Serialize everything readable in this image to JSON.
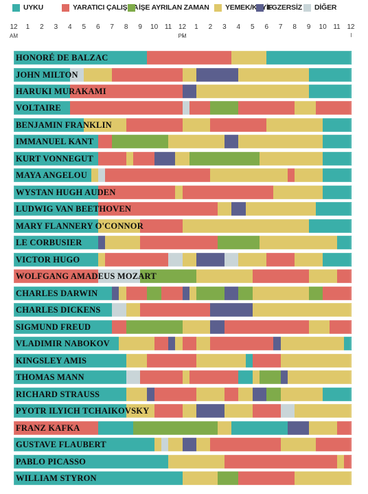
{
  "legend": [
    {
      "key": "sleep",
      "label": "UYKU",
      "color": "#3aafa9"
    },
    {
      "key": "creative",
      "label": "YARATICI ÇALIŞMA",
      "color": "#e06b63"
    },
    {
      "key": "job",
      "label": "İŞE AYRILAN ZAMAN",
      "color": "#7fab4a"
    },
    {
      "key": "food",
      "label": "YEMEK/KEYİF",
      "color": "#dfc86a"
    },
    {
      "key": "exercise",
      "label": "EGZERSİZ",
      "color": "#5b5f8e"
    },
    {
      "key": "other",
      "label": "DİĞER",
      "color": "#c9d5d8"
    }
  ],
  "axis": {
    "ticks": [
      "12",
      "1",
      "2",
      "3",
      "4",
      "5",
      "6",
      "7",
      "8",
      "9",
      "10",
      "11",
      "12",
      "1",
      "2",
      "3",
      "4",
      "5",
      "6",
      "7",
      "8",
      "9",
      "10",
      "11",
      "12"
    ],
    "am_label": "AM",
    "pm_label": "PM"
  },
  "chart_data": {
    "type": "bar",
    "orientation": "horizontal-timeline",
    "x_unit": "hour of day (0 = 12 AM, 24 = 12 AM next day)",
    "xlim": [
      0,
      24
    ],
    "category_key": {
      "S": "UYKU",
      "C": "YARATICI ÇALIŞMA",
      "J": "İŞE AYRILAN ZAMAN",
      "F": "YEMEK/KEYİF",
      "E": "EGZERSİZ",
      "O": "DİĞER"
    },
    "rows": [
      {
        "name": "HONORÉ DE BALZAC",
        "segments": [
          [
            0,
            8,
            "S"
          ],
          [
            8,
            9.5,
            "S"
          ],
          [
            9.5,
            15.5,
            "C"
          ],
          [
            15.5,
            18,
            "F"
          ],
          [
            18,
            24,
            "S"
          ]
        ]
      },
      {
        "name": "JOHN MILTON",
        "segments": [
          [
            0,
            4,
            "S"
          ],
          [
            4,
            5,
            "O"
          ],
          [
            5,
            7,
            "F"
          ],
          [
            7,
            12,
            "C"
          ],
          [
            12,
            13,
            "F"
          ],
          [
            13,
            16,
            "E"
          ],
          [
            16,
            21,
            "F"
          ],
          [
            21,
            24,
            "S"
          ]
        ]
      },
      {
        "name": "HARUKI MURAKAMI",
        "segments": [
          [
            0,
            4,
            "S"
          ],
          [
            4,
            12,
            "C"
          ],
          [
            12,
            13,
            "E"
          ],
          [
            13,
            21,
            "F"
          ],
          [
            21,
            24,
            "S"
          ]
        ]
      },
      {
        "name": "VOLTAIRE",
        "segments": [
          [
            0,
            4,
            "S"
          ],
          [
            4,
            12,
            "C"
          ],
          [
            12,
            12.5,
            "O"
          ],
          [
            12.5,
            14,
            "C"
          ],
          [
            14,
            16,
            "J"
          ],
          [
            16,
            20,
            "C"
          ],
          [
            20,
            21.5,
            "F"
          ],
          [
            21.5,
            24,
            "C"
          ]
        ]
      },
      {
        "name": "BENJAMIN FRANKLIN",
        "segments": [
          [
            0,
            5,
            "S"
          ],
          [
            5,
            8,
            "F"
          ],
          [
            8,
            12,
            "C"
          ],
          [
            12,
            14,
            "F"
          ],
          [
            14,
            18,
            "C"
          ],
          [
            18,
            22,
            "F"
          ],
          [
            22,
            24,
            "S"
          ]
        ]
      },
      {
        "name": "IMMANUEL KANT",
        "segments": [
          [
            0,
            6,
            "S"
          ],
          [
            6,
            7,
            "C"
          ],
          [
            7,
            11,
            "J"
          ],
          [
            11,
            15,
            "F"
          ],
          [
            15,
            16,
            "E"
          ],
          [
            16,
            22,
            "F"
          ],
          [
            22,
            24,
            "S"
          ]
        ]
      },
      {
        "name": "KURT VONNEGUT",
        "segments": [
          [
            0,
            6,
            "S"
          ],
          [
            6,
            8,
            "C"
          ],
          [
            8,
            8.5,
            "F"
          ],
          [
            8.5,
            10,
            "C"
          ],
          [
            10,
            11.5,
            "E"
          ],
          [
            11.5,
            12.5,
            "F"
          ],
          [
            12.5,
            17.5,
            "J"
          ],
          [
            17.5,
            22,
            "F"
          ],
          [
            22,
            24,
            "S"
          ]
        ]
      },
      {
        "name": "MAYA ANGELOU",
        "segments": [
          [
            0,
            5.5,
            "S"
          ],
          [
            5.5,
            6,
            "F"
          ],
          [
            6,
            6.5,
            "O"
          ],
          [
            6.5,
            14,
            "C"
          ],
          [
            14,
            19.5,
            "F"
          ],
          [
            19.5,
            20,
            "C"
          ],
          [
            20,
            22,
            "F"
          ],
          [
            22,
            24,
            "S"
          ]
        ]
      },
      {
        "name": "WYSTAN HUGH AUDEN",
        "segments": [
          [
            0,
            6,
            "S"
          ],
          [
            6,
            11.5,
            "C"
          ],
          [
            11.5,
            12,
            "F"
          ],
          [
            12,
            18.5,
            "C"
          ],
          [
            18.5,
            22,
            "F"
          ],
          [
            22,
            24,
            "S"
          ]
        ]
      },
      {
        "name": "LUDWIG VAN BEETHOVEN",
        "segments": [
          [
            0,
            6,
            "S"
          ],
          [
            6,
            14.5,
            "C"
          ],
          [
            14.5,
            15.5,
            "F"
          ],
          [
            15.5,
            16.5,
            "E"
          ],
          [
            16.5,
            21.5,
            "F"
          ],
          [
            21.5,
            24,
            "S"
          ]
        ]
      },
      {
        "name": "MARY FLANNERY O'CONNOR",
        "segments": [
          [
            0,
            6,
            "S"
          ],
          [
            6,
            9,
            "F"
          ],
          [
            9,
            12,
            "C"
          ],
          [
            12,
            21,
            "F"
          ],
          [
            21,
            24,
            "S"
          ]
        ]
      },
      {
        "name": "LE CORBUSIER",
        "segments": [
          [
            0,
            6,
            "S"
          ],
          [
            6,
            6.5,
            "E"
          ],
          [
            6.5,
            9,
            "F"
          ],
          [
            9,
            14.5,
            "C"
          ],
          [
            14.5,
            17.5,
            "J"
          ],
          [
            17.5,
            23,
            "F"
          ],
          [
            23,
            24,
            "S"
          ]
        ]
      },
      {
        "name": "VICTOR HUGO",
        "segments": [
          [
            0,
            6,
            "S"
          ],
          [
            6,
            6.5,
            "F"
          ],
          [
            6.5,
            11,
            "C"
          ],
          [
            11,
            12,
            "O"
          ],
          [
            12,
            13,
            "F"
          ],
          [
            13,
            15,
            "E"
          ],
          [
            15,
            16,
            "O"
          ],
          [
            16,
            18,
            "F"
          ],
          [
            18,
            20,
            "C"
          ],
          [
            20,
            22,
            "F"
          ],
          [
            22,
            24,
            "S"
          ]
        ]
      },
      {
        "name": "WOLFGANG AMADEUS MOZART",
        "segments": [
          [
            0,
            6,
            "C"
          ],
          [
            6,
            9,
            "O"
          ],
          [
            9,
            13,
            "J"
          ],
          [
            13,
            17,
            "F"
          ],
          [
            17,
            21,
            "C"
          ],
          [
            21,
            23,
            "F"
          ],
          [
            23,
            24,
            "C"
          ]
        ]
      },
      {
        "name": "CHARLES DARWIN",
        "segments": [
          [
            0,
            7,
            "S"
          ],
          [
            7,
            7.5,
            "E"
          ],
          [
            7.5,
            8,
            "F"
          ],
          [
            8,
            9.5,
            "C"
          ],
          [
            9.5,
            10.5,
            "J"
          ],
          [
            10.5,
            12,
            "C"
          ],
          [
            12,
            12.5,
            "E"
          ],
          [
            12.5,
            13,
            "F"
          ],
          [
            13,
            15,
            "J"
          ],
          [
            15,
            16,
            "E"
          ],
          [
            16,
            17,
            "J"
          ],
          [
            17,
            21,
            "F"
          ],
          [
            21,
            22,
            "J"
          ],
          [
            22,
            24,
            "C"
          ]
        ]
      },
      {
        "name": "CHARLES DICKENS",
        "segments": [
          [
            0,
            7,
            "S"
          ],
          [
            7,
            8,
            "O"
          ],
          [
            8,
            9,
            "F"
          ],
          [
            9,
            14,
            "C"
          ],
          [
            14,
            17,
            "E"
          ],
          [
            17,
            24,
            "F"
          ]
        ]
      },
      {
        "name": "SIGMUND FREUD",
        "segments": [
          [
            0,
            7,
            "S"
          ],
          [
            7,
            8,
            "C"
          ],
          [
            8,
            12,
            "J"
          ],
          [
            12,
            14,
            "F"
          ],
          [
            14,
            15,
            "E"
          ],
          [
            15,
            21,
            "C"
          ],
          [
            21,
            22.5,
            "F"
          ],
          [
            22.5,
            24,
            "C"
          ]
        ]
      },
      {
        "name": "VLADIMIR NABOKOV",
        "segments": [
          [
            0,
            7.5,
            "S"
          ],
          [
            7.5,
            10,
            "F"
          ],
          [
            10,
            11,
            "C"
          ],
          [
            11,
            11.5,
            "E"
          ],
          [
            11.5,
            12,
            "F"
          ],
          [
            12,
            13,
            "C"
          ],
          [
            13,
            14,
            "F"
          ],
          [
            14,
            18.5,
            "C"
          ],
          [
            18.5,
            19,
            "E"
          ],
          [
            19,
            23.5,
            "F"
          ],
          [
            23.5,
            24,
            "S"
          ]
        ]
      },
      {
        "name": "KINGSLEY AMIS",
        "segments": [
          [
            0,
            8,
            "S"
          ],
          [
            8,
            9.5,
            "F"
          ],
          [
            9.5,
            13,
            "C"
          ],
          [
            13,
            16.5,
            "F"
          ],
          [
            16.5,
            17,
            "S"
          ],
          [
            17,
            19,
            "C"
          ],
          [
            19,
            24,
            "F"
          ]
        ]
      },
      {
        "name": "THOMAS MANN",
        "segments": [
          [
            0,
            8,
            "S"
          ],
          [
            8,
            9,
            "O"
          ],
          [
            9,
            12,
            "C"
          ],
          [
            12,
            12.5,
            "F"
          ],
          [
            12.5,
            16,
            "C"
          ],
          [
            16,
            17,
            "S"
          ],
          [
            17,
            17.5,
            "F"
          ],
          [
            17.5,
            19,
            "J"
          ],
          [
            19,
            19.5,
            "E"
          ],
          [
            19.5,
            24,
            "F"
          ]
        ]
      },
      {
        "name": "RICHARD STRAUSS",
        "segments": [
          [
            0,
            8,
            "S"
          ],
          [
            8,
            9.5,
            "F"
          ],
          [
            9.5,
            10,
            "E"
          ],
          [
            10,
            13,
            "C"
          ],
          [
            13,
            15,
            "F"
          ],
          [
            15,
            16,
            "C"
          ],
          [
            16,
            17,
            "F"
          ],
          [
            17,
            18,
            "E"
          ],
          [
            18,
            19,
            "J"
          ],
          [
            19,
            22,
            "F"
          ],
          [
            22,
            24,
            "S"
          ]
        ]
      },
      {
        "name": "PYOTR ILYICH TCHAIKOVSKY",
        "segments": [
          [
            0,
            8,
            "S"
          ],
          [
            8,
            10,
            "F"
          ],
          [
            10,
            12,
            "C"
          ],
          [
            12,
            13,
            "F"
          ],
          [
            13,
            15,
            "E"
          ],
          [
            15,
            17,
            "F"
          ],
          [
            17,
            19,
            "C"
          ],
          [
            19,
            20,
            "O"
          ],
          [
            20,
            24,
            "F"
          ]
        ]
      },
      {
        "name": "FRANZ KAFKA",
        "segments": [
          [
            0,
            6,
            "C"
          ],
          [
            6,
            8.5,
            "S"
          ],
          [
            8.5,
            14.5,
            "J"
          ],
          [
            14.5,
            15.5,
            "F"
          ],
          [
            15.5,
            19.5,
            "S"
          ],
          [
            19.5,
            21,
            "E"
          ],
          [
            21,
            23,
            "F"
          ],
          [
            23,
            24,
            "C"
          ]
        ]
      },
      {
        "name": "GUSTAVE FLAUBERT",
        "segments": [
          [
            0,
            10,
            "S"
          ],
          [
            10,
            10.5,
            "F"
          ],
          [
            10.5,
            11,
            "O"
          ],
          [
            11,
            12,
            "F"
          ],
          [
            12,
            13,
            "E"
          ],
          [
            13,
            14,
            "F"
          ],
          [
            14,
            19,
            "C"
          ],
          [
            19,
            21.5,
            "F"
          ],
          [
            21.5,
            24,
            "C"
          ]
        ]
      },
      {
        "name": "PABLO PICASSO",
        "segments": [
          [
            0,
            11,
            "S"
          ],
          [
            11,
            15,
            "F"
          ],
          [
            15,
            23,
            "C"
          ],
          [
            23,
            23.5,
            "F"
          ],
          [
            23.5,
            24,
            "C"
          ]
        ]
      },
      {
        "name": "WILLIAM STYRON",
        "segments": [
          [
            0,
            12,
            "S"
          ],
          [
            12,
            14.5,
            "F"
          ],
          [
            14.5,
            16,
            "J"
          ],
          [
            16,
            20,
            "C"
          ],
          [
            20,
            24,
            "F"
          ]
        ]
      }
    ]
  }
}
